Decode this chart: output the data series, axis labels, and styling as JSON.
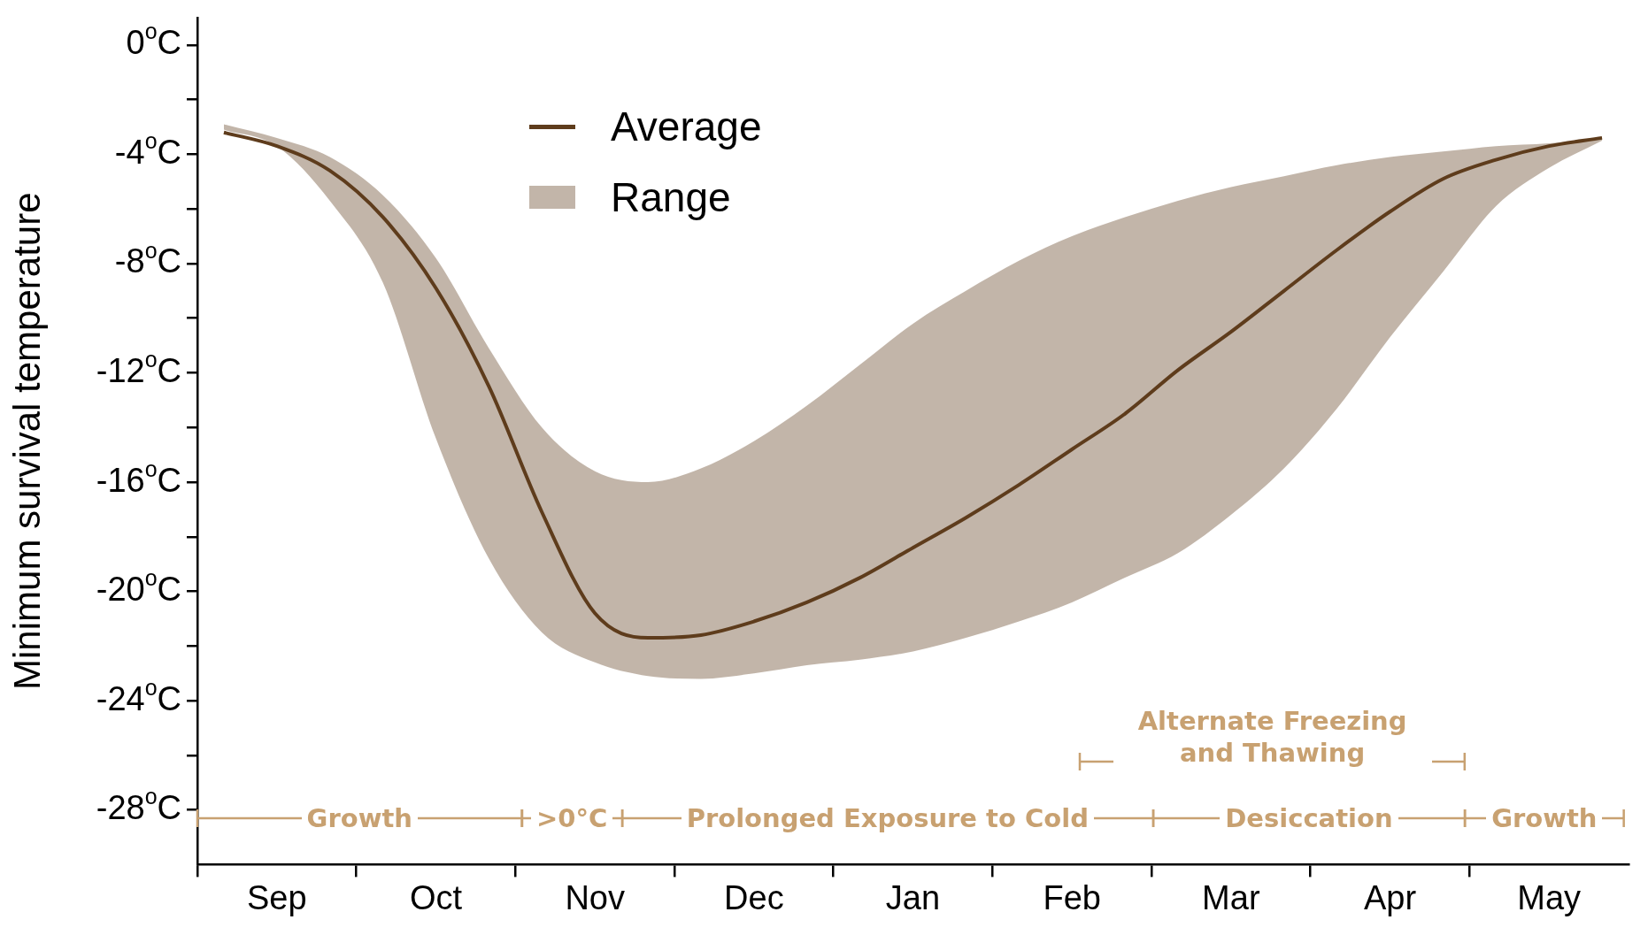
{
  "chart_data": {
    "type": "line",
    "ylabel": "Minimum survival temperature",
    "categories": [
      null,
      "Sep",
      null,
      null,
      "Oct",
      null,
      null,
      "Nov",
      null,
      null,
      "Dec",
      null,
      null,
      "Jan",
      null,
      null,
      "Feb",
      null,
      null,
      "Mar",
      null,
      null,
      "Apr",
      null,
      null,
      "May",
      null
    ],
    "series": [
      {
        "name": "Average",
        "color": "#5e3c1c",
        "values": [
          -3.2,
          -3.7,
          -4.6,
          -6.3,
          -8.9,
          -12.5,
          -17.1,
          -20.8,
          -21.7,
          -21.6,
          -21.1,
          -20.4,
          -19.5,
          -18.4,
          -17.3,
          -16.1,
          -14.8,
          -13.5,
          -11.9,
          -10.5,
          -9.0,
          -7.5,
          -6.1,
          -4.9,
          -4.2,
          -3.7,
          -3.4
        ],
        "upper": [
          -2.9,
          -3.4,
          -4.1,
          -5.5,
          -7.8,
          -11.1,
          -14.0,
          -15.6,
          -16.0,
          -15.5,
          -14.5,
          -13.2,
          -11.7,
          -10.2,
          -9.0,
          -7.9,
          -7.0,
          -6.3,
          -5.7,
          -5.2,
          -4.8,
          -4.4,
          -4.1,
          -3.9,
          -3.7,
          -3.6,
          -3.4
        ],
        "lower": [
          -3.1,
          -3.7,
          -5.7,
          -8.7,
          -14.4,
          -18.8,
          -21.5,
          -22.6,
          -23.1,
          -23.2,
          -23.0,
          -22.7,
          -22.5,
          -22.2,
          -21.7,
          -21.1,
          -20.4,
          -19.5,
          -18.6,
          -17.2,
          -15.5,
          -13.3,
          -10.7,
          -8.3,
          -5.9,
          -4.5,
          -3.5
        ]
      }
    ],
    "ylim": [
      -30,
      1
    ],
    "yticks": [
      {
        "value": 0,
        "label": "0$^{o}$C"
      },
      {
        "value": -2,
        "label": null
      },
      {
        "value": -4,
        "label": "-4$^{o}$C"
      },
      {
        "value": -6,
        "label": null
      },
      {
        "value": -8,
        "label": "-8$^{o}$C"
      },
      {
        "value": -10,
        "label": null
      },
      {
        "value": -12,
        "label": "-12$^{o}$C"
      },
      {
        "value": -14,
        "label": null
      },
      {
        "value": -16,
        "label": "-16$^{o}$C"
      },
      {
        "value": -18,
        "label": null
      },
      {
        "value": -20,
        "label": "-20$^{o}$C"
      },
      {
        "value": -22,
        "label": null
      },
      {
        "value": -24,
        "label": "-24$^{o}$C"
      },
      {
        "value": -26,
        "label": null
      },
      {
        "value": -28,
        "label": "-28$^{o}$C"
      }
    ],
    "annotations": [
      "Growth",
      ">0°C",
      "Prolonged Exposure to Cold",
      "Desiccation",
      "Growth",
      "Alternate Freezing and Thawing",
      "Range"
    ],
    "legend": "top left",
    "grid": false,
    "marker": "none",
    "line_style": "solid"
  }
}
